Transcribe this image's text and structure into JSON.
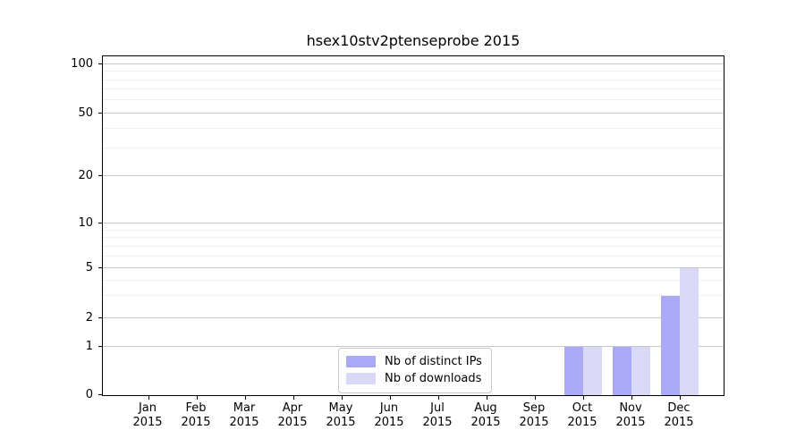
{
  "chart_data": {
    "type": "bar",
    "title": "hsex10stv2ptenseprobe 2015",
    "xlabel": "",
    "ylabel": "",
    "year_label": "2015",
    "categories": [
      "Jan",
      "Feb",
      "Mar",
      "Apr",
      "May",
      "Jun",
      "Jul",
      "Aug",
      "Sep",
      "Oct",
      "Nov",
      "Dec"
    ],
    "series": [
      {
        "name": "Nb of distinct IPs",
        "color": "#a9a9f7",
        "values": [
          0,
          0,
          0,
          0,
          0,
          0,
          0,
          0,
          0,
          1,
          1,
          3
        ]
      },
      {
        "name": "Nb of downloads",
        "color": "#d9d9f7",
        "values": [
          0,
          0,
          0,
          0,
          0,
          0,
          0,
          0,
          0,
          1,
          1,
          5
        ]
      }
    ],
    "y_axis": {
      "scale": "symlog",
      "ylim": [
        0,
        105
      ],
      "major_ticks": [
        0,
        1,
        2,
        5,
        10,
        20,
        50,
        100
      ],
      "minor_ticks": [
        3,
        4,
        6,
        7,
        8,
        9,
        30,
        40,
        60,
        70,
        80,
        90
      ]
    },
    "grid": "horizontal",
    "legend_position": "bottom-center"
  }
}
